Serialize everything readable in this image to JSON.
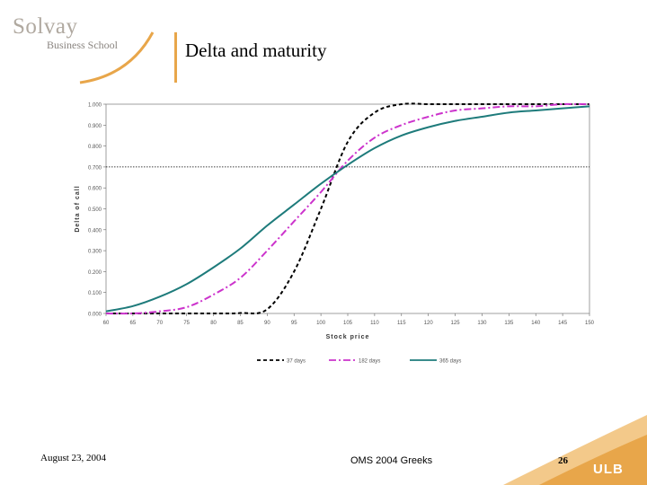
{
  "header": {
    "logo_name": "Solvay",
    "logo_subtitle": "Business School",
    "title": "Delta and maturity"
  },
  "footer": {
    "date": "August 23, 2004",
    "center": "OMS 2004 Greeks",
    "page": "26",
    "ulb_logo": "ULB"
  },
  "colors": {
    "accent": "#e8a64a",
    "series_37": "#000000",
    "series_182": "#cc33cc",
    "series_365": "#1e7b7b"
  },
  "chart_data": {
    "type": "line",
    "xlabel": "Stock price",
    "ylabel": "Delta of call",
    "xlim": [
      60,
      150
    ],
    "ylim": [
      0,
      1
    ],
    "x_ticks": [
      "60",
      "65",
      "70",
      "75",
      "80",
      "85",
      "90",
      "95",
      "100",
      "105",
      "110",
      "115",
      "120",
      "125",
      "130",
      "135",
      "140",
      "145",
      "150"
    ],
    "y_ticks": [
      "0.000",
      "0.100",
      "0.200",
      "0.300",
      "0.400",
      "0.500",
      "0.600",
      "0.700",
      "0.800",
      "0.900",
      "1.000"
    ],
    "reference_line_y": 0.7,
    "legend_position": "bottom",
    "x": [
      60,
      65,
      70,
      75,
      80,
      85,
      90,
      95,
      100,
      105,
      110,
      115,
      120,
      125,
      130,
      135,
      140,
      145,
      150
    ],
    "series": [
      {
        "name": "37 days",
        "style": "dashed",
        "values": [
          0.0,
          0.0,
          0.0,
          0.0,
          0.0,
          0.002,
          0.02,
          0.2,
          0.5,
          0.82,
          0.96,
          1.0,
          1.0,
          1.0,
          1.0,
          1.0,
          1.0,
          1.0,
          1.0
        ]
      },
      {
        "name": "182 days",
        "style": "dashdot",
        "values": [
          0.0,
          0.0,
          0.01,
          0.03,
          0.09,
          0.17,
          0.3,
          0.44,
          0.58,
          0.73,
          0.84,
          0.9,
          0.94,
          0.97,
          0.98,
          0.99,
          0.99,
          1.0,
          1.0
        ]
      },
      {
        "name": "365 days",
        "style": "solid",
        "values": [
          0.01,
          0.035,
          0.08,
          0.14,
          0.22,
          0.31,
          0.42,
          0.52,
          0.62,
          0.71,
          0.79,
          0.85,
          0.89,
          0.92,
          0.94,
          0.96,
          0.97,
          0.98,
          0.99
        ]
      }
    ]
  }
}
